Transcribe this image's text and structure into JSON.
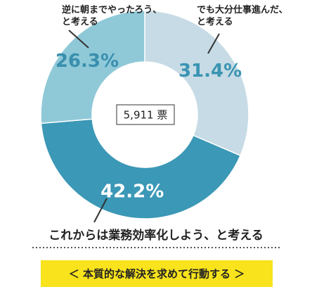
{
  "chart_data": {
    "type": "donut",
    "categories": [
      "でも大分仕事進んだ、\nと考える",
      "これからは業務効率化しよう、と考える",
      "逆に朝までやったろう、\nと考える"
    ],
    "values": [
      31.4,
      42.2,
      26.3
    ],
    "value_labels": [
      "31.4%",
      "42.2%",
      "26.3%"
    ],
    "colors": [
      "#c6dbe5",
      "#3b98b6",
      "#8fc9d8"
    ],
    "label_colors": [
      "#3a94b2",
      "#ffffff",
      "#3a8fae"
    ],
    "total_label": "5,911 票"
  },
  "button": {
    "text": "＜ 本質的な解決を求めて行動する ＞"
  }
}
